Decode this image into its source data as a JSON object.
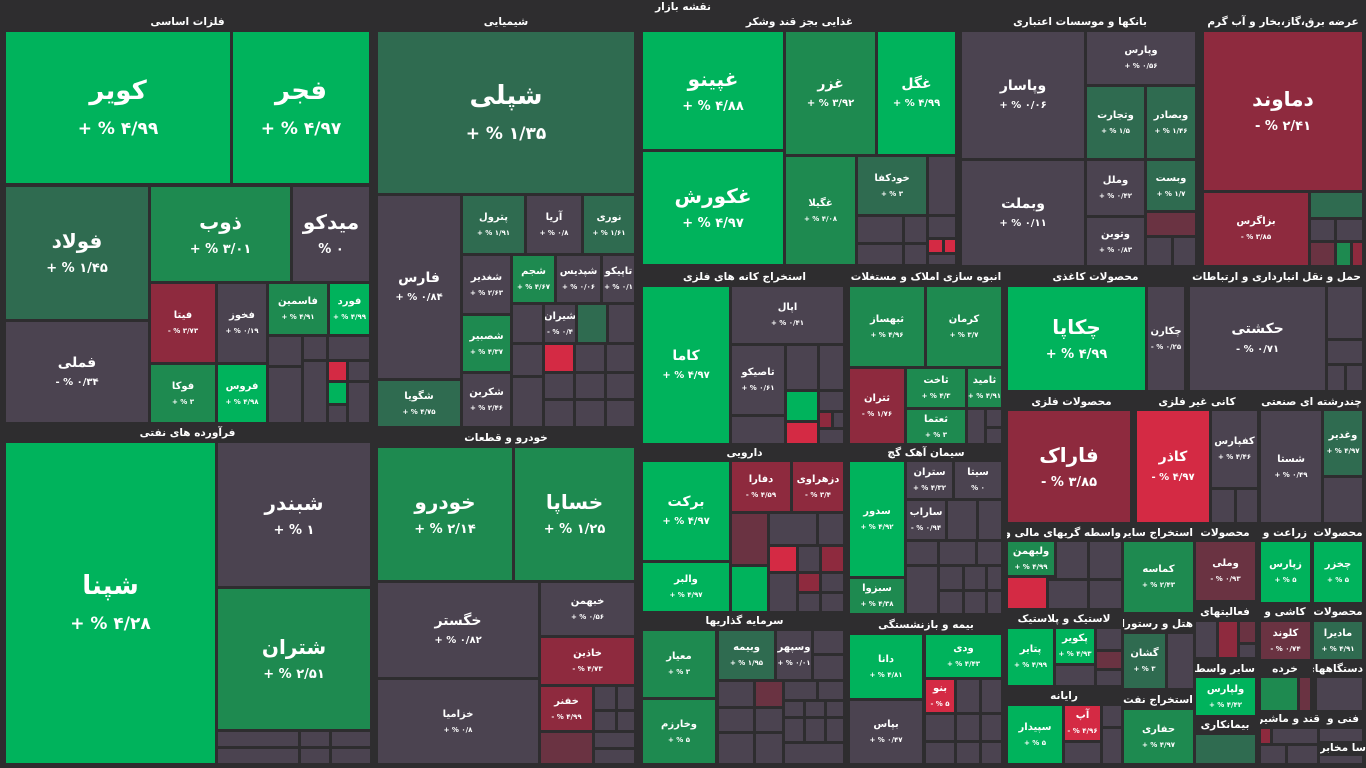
{
  "colors": {
    "background": "#2e2d2f",
    "strong_green": "#00b35c",
    "mid_green": "#1e8a50",
    "dark_green": "#2f6b50",
    "strong_red": "#d42a44",
    "mid_red": "#8e2a3e",
    "dark_red": "#6a3342",
    "neutral": "#4b4350"
  },
  "title": "نقشه بازار",
  "sectors": [
    "فلزات اساسی",
    "شیمیایی",
    "غذایی بجز قند وشکر",
    "بانکها و موسسات اعتباری",
    "عرضه برق،گاز،بخار و آب گرم",
    "استخراج کانه های فلزی",
    "انبوه سازی املاک و مستغلات",
    "محصولات کاغذی",
    "حمل و نقل انبارداری و ارتباطات",
    "فرآورده های نفتی",
    "خودرو و قطعات",
    "دارویی",
    "سیمان آهک گچ",
    "محصولات فلزی",
    "کانی غیر فلزی",
    "چندرشته ای صنعتی",
    "واسطه گریهای مالی و",
    "استخراج سایر",
    "محصولات",
    "زراعت و",
    "محصولات",
    "سرمایه گذاریها",
    "بیمه و بازنشستگی",
    "لاستیک و پلاستیک",
    "هتل و رستوران",
    "کاشی و",
    "محصولات",
    "فعالیتهای",
    "سایر واسطه",
    "خرده",
    "دستگاههای",
    "رایانه",
    "استخراج نفت",
    "قند و ماشیر",
    "بیمانکاری",
    "فنی و",
    "سا مخابرا"
  ],
  "tiles": [
    {
      "n": "کویر",
      "v": "۴/۹۹ % +"
    },
    {
      "n": "فجر",
      "v": "۴/۹۷ % +"
    },
    {
      "n": "فولاد",
      "v": "۱/۴۵ % +"
    },
    {
      "n": "ذوب",
      "v": "۳/۰۱ % +"
    },
    {
      "n": "میدکو",
      "v": "۰ %"
    },
    {
      "n": "فملی",
      "v": "۰/۳۴ % -"
    },
    {
      "n": "فیتا",
      "v": "۳/۷۳ % -"
    },
    {
      "n": "فخوز",
      "v": "۰/۱۹ % +"
    },
    {
      "n": "فاسمین",
      "v": "۴/۹۱ % +"
    },
    {
      "n": "فورد",
      "v": "۴/۹۹ % +"
    },
    {
      "n": "فوکا",
      "v": "۳ % +"
    },
    {
      "n": "فروس",
      "v": "۴/۹۸ % +"
    },
    {
      "n": "شپلی",
      "v": "۱/۳۵ % +"
    },
    {
      "n": "فارس",
      "v": "۰/۸۴ % +"
    },
    {
      "n": "شگویا",
      "v": "۴/۷۵ % +"
    },
    {
      "n": "پترول",
      "v": "۱/۹۱ % +"
    },
    {
      "n": "آریا",
      "v": "۰/۸ % +"
    },
    {
      "n": "نوری",
      "v": "۱/۶۱ % +"
    },
    {
      "n": "شغدیر",
      "v": "۲/۶۳ % +"
    },
    {
      "n": "شجم",
      "v": "۴/۶۷ % +"
    },
    {
      "n": "شپدیس",
      "v": "۰/۰۶ % +"
    },
    {
      "n": "تاپیکو",
      "v": "۰/۱ % +"
    },
    {
      "n": "شیران",
      "v": "۰/۴ % -"
    },
    {
      "n": "شصبیر",
      "v": "۴/۳۷ % +"
    },
    {
      "n": "شکربن",
      "v": "۲/۴۶ % +"
    },
    {
      "n": "غپینو",
      "v": "۴/۸۸ % +"
    },
    {
      "n": "غزر",
      "v": "۳/۹۲ % +"
    },
    {
      "n": "غگل",
      "v": "۴/۹۹ % +"
    },
    {
      "n": "غکورش",
      "v": "۴/۹۷ % +"
    },
    {
      "n": "غگیلا",
      "v": "۴/۰۸ % +"
    },
    {
      "n": "خودکفا",
      "v": "۳ % +"
    },
    {
      "n": "وپاسار",
      "v": "۰/۰۶ % +"
    },
    {
      "n": "وپارس",
      "v": "۰/۵۶ % +"
    },
    {
      "n": "وتجارت",
      "v": "۱/۵ % +"
    },
    {
      "n": "وبصادر",
      "v": "۱/۴۶ % +"
    },
    {
      "n": "وبملت",
      "v": "۰/۱۱ % +"
    },
    {
      "n": "وملل",
      "v": "۰/۴۲ % +"
    },
    {
      "n": "وبست",
      "v": "۱/۷ % +"
    },
    {
      "n": "وتوبن",
      "v": "۰/۸۳ % +"
    },
    {
      "n": "دماوند",
      "v": "۲/۴۱ % -"
    },
    {
      "n": "بزاگرس",
      "v": "۳/۸۵ % -"
    },
    {
      "n": "کاما",
      "v": "۴/۹۷ % +"
    },
    {
      "n": "اپال",
      "v": "۰/۴۱ % +"
    },
    {
      "n": "تاصیکو",
      "v": "۰/۶۱ % +"
    },
    {
      "n": "ثبهساز",
      "v": "۴/۹۶ % +"
    },
    {
      "n": "کرمان",
      "v": "۳/۷ % +"
    },
    {
      "n": "ثتران",
      "v": "۱/۷۶ % -"
    },
    {
      "n": "ثاخت",
      "v": "۴/۳ % +"
    },
    {
      "n": "ثامید",
      "v": "۴/۹۱ % +"
    },
    {
      "n": "ثعتما",
      "v": "۳ % +"
    },
    {
      "n": "چکاپا",
      "v": "۴/۹۹ % +"
    },
    {
      "n": "چکارن",
      "v": "۰/۲۵ % -"
    },
    {
      "n": "حکشتی",
      "v": "۰/۷۱ % -"
    },
    {
      "n": "شپنا",
      "v": "۴/۲۸ % +"
    },
    {
      "n": "شبندر",
      "v": "۱ % +"
    },
    {
      "n": "شتران",
      "v": "۲/۵۱ % +"
    },
    {
      "n": "خودرو",
      "v": "۲/۱۴ % +"
    },
    {
      "n": "خساپا",
      "v": "۱/۲۵ % +"
    },
    {
      "n": "خگستر",
      "v": "۰/۸۲ % +"
    },
    {
      "n": "خبهمن",
      "v": "۰/۵۶ % +"
    },
    {
      "n": "خاذین",
      "v": "۴/۷۳ % -"
    },
    {
      "n": "خفنر",
      "v": "۴/۹۹ % -"
    },
    {
      "n": "خزامیا",
      "v": "۰/۸ % +"
    },
    {
      "n": "برکت",
      "v": "۴/۹۷ % +"
    },
    {
      "n": "دفارا",
      "v": "۴/۵۹ % -"
    },
    {
      "n": "دزهراوی",
      "v": "۳/۴ % -"
    },
    {
      "n": "والبر",
      "v": "۴/۹۷ % +"
    },
    {
      "n": "سدور",
      "v": "۴/۹۲ % +"
    },
    {
      "n": "ستران",
      "v": "۴/۳۲ % +"
    },
    {
      "n": "سیتا",
      "v": "۰ %"
    },
    {
      "n": "ساراب",
      "v": "۰/۹۴ % -"
    },
    {
      "n": "سبزوا",
      "v": "۴/۳۸ % +"
    },
    {
      "n": "فاراک",
      "v": "۳/۸۵ % -"
    },
    {
      "n": "کاذر",
      "v": "۴/۹۷ % -"
    },
    {
      "n": "کفپارس",
      "v": "۴/۴۶ % +"
    },
    {
      "n": "شستا",
      "v": "۰/۴۹ % +"
    },
    {
      "n": "وغدیر",
      "v": "۴/۹۷ % +"
    },
    {
      "n": "ولبهمن",
      "v": "۴/۹۹ % +"
    },
    {
      "n": "کماسه",
      "v": "۲/۴۳ % +"
    },
    {
      "n": "وملی",
      "v": "۰/۹۳ % -"
    },
    {
      "n": "زپارس",
      "v": "۵ % +"
    },
    {
      "n": "چخزر",
      "v": "۵ % +"
    },
    {
      "n": "معیار",
      "v": "۳ % +"
    },
    {
      "n": "وبیمه",
      "v": "۱/۹۵ % +"
    },
    {
      "n": "وسپهر",
      "v": "۰/۰۱ % +"
    },
    {
      "n": "وخارزم",
      "v": "۵ % +"
    },
    {
      "n": "دانا",
      "v": "۴/۸۱ % +"
    },
    {
      "n": "ودی",
      "v": "۴/۴۳ % +"
    },
    {
      "n": "بنو",
      "v": "۵ % -"
    },
    {
      "n": "بپاس",
      "v": "۰/۴۷ % +"
    },
    {
      "n": "پتایر",
      "v": "۴/۹۹ % +"
    },
    {
      "n": "پکویر",
      "v": "۴/۹۳ % +"
    },
    {
      "n": "گشان",
      "v": "۳ % +"
    },
    {
      "n": "کلوند",
      "v": "۰/۷۴ % -"
    },
    {
      "n": "مادیرا",
      "v": "۴/۹۱ % +"
    },
    {
      "n": "ولپارس",
      "v": "۴/۴۲ % +"
    },
    {
      "n": "سپیدار",
      "v": "۵ % +"
    },
    {
      "n": "آپ",
      "v": "۴/۹۶ % -"
    },
    {
      "n": "حفاری",
      "v": "۴/۹۷ % +"
    }
  ]
}
